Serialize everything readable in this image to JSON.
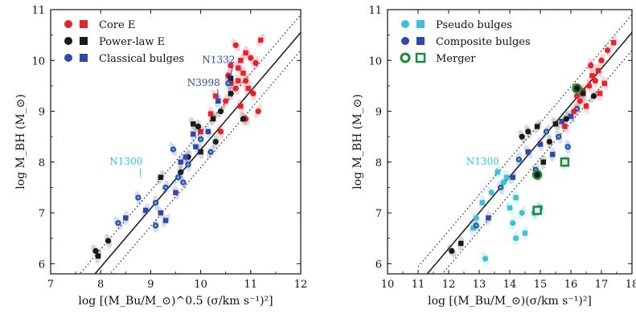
{
  "chart_data": [
    {
      "type": "scatter",
      "xlabel": "log [(M_Bu/M_⊙)^0.5 (σ/km s⁻¹)²]",
      "ylabel": "log M_BH (M_⊙)",
      "xlim": [
        7,
        12
      ],
      "ylim": [
        5.8,
        11
      ],
      "xticks": [
        7,
        8,
        9,
        10,
        11,
        12
      ],
      "yticks": [
        6,
        7,
        8,
        9,
        10,
        11
      ],
      "legend_position": "top-left",
      "legend": [
        {
          "label": "Core E",
          "color": "#e8222c",
          "marker": "circle+square"
        },
        {
          "label": "Power-law E",
          "color": "#1a1a1a",
          "marker": "circle+square"
        },
        {
          "label": "Classical bulges",
          "color": "#2f49a8",
          "marker": "circle+square"
        }
      ],
      "fit_line": {
        "x": [
          7.8,
          12.0
        ],
        "y": [
          5.7,
          10.55
        ]
      },
      "scatter_band": {
        "x": [
          7.6,
          12.0
        ],
        "offsets": [
          -0.35,
          0.35
        ]
      },
      "annotations": [
        {
          "text": "N1332",
          "color": "#2f49a8",
          "x": 10.35,
          "y": 9.95,
          "target_x": 10.58,
          "target_y": 9.62
        },
        {
          "text": "N3998",
          "color": "#2f49a8",
          "x": 10.05,
          "y": 9.5,
          "target_x": 10.35,
          "target_y": 9.2
        },
        {
          "text": "N1300",
          "color": "#3cc1d8",
          "x": 8.5,
          "y": 7.95,
          "target_x": 8.8,
          "target_y": 7.7
        }
      ],
      "series": [
        {
          "name": "Core E",
          "color": "#e8222c",
          "points": [
            [
              10.7,
              10.3
            ],
            [
              10.9,
              10.15
            ],
            [
              11.0,
              10.05
            ],
            [
              10.8,
              10.0
            ],
            [
              10.6,
              9.9
            ],
            [
              10.75,
              9.85
            ],
            [
              11.1,
              9.95
            ],
            [
              10.85,
              9.75
            ],
            [
              10.9,
              9.6
            ],
            [
              10.6,
              9.55
            ],
            [
              10.7,
              9.45
            ],
            [
              10.95,
              9.45
            ],
            [
              11.05,
              9.35
            ],
            [
              10.3,
              9.3
            ],
            [
              10.5,
              9.2
            ],
            [
              10.8,
              9.1
            ],
            [
              11.15,
              9.0
            ],
            [
              10.2,
              8.95
            ],
            [
              10.9,
              8.85
            ],
            [
              10.0,
              8.6
            ],
            [
              10.4,
              8.6
            ],
            [
              11.2,
              10.4
            ],
            [
              10.55,
              9.7
            ],
            [
              10.75,
              9.6
            ]
          ]
        },
        {
          "name": "Power-law E",
          "color": "#1a1a1a",
          "points": [
            [
              7.9,
              6.25
            ],
            [
              7.95,
              6.15
            ],
            [
              8.15,
              6.45
            ],
            [
              9.2,
              7.7
            ],
            [
              9.6,
              7.8
            ],
            [
              9.85,
              8.75
            ],
            [
              9.75,
              8.1
            ],
            [
              10.0,
              8.2
            ],
            [
              10.4,
              9.0
            ],
            [
              10.6,
              9.35
            ],
            [
              10.85,
              8.85
            ],
            [
              10.25,
              8.85
            ],
            [
              9.95,
              8.7
            ],
            [
              10.6,
              9.65
            ],
            [
              10.3,
              8.4
            ]
          ]
        },
        {
          "name": "Classical bulges",
          "color": "#2f49a8",
          "points": [
            [
              8.35,
              6.8
            ],
            [
              8.5,
              6.9
            ],
            [
              8.75,
              7.3
            ],
            [
              8.9,
              7.05
            ],
            [
              9.1,
              7.2
            ],
            [
              9.2,
              7.0
            ],
            [
              9.3,
              7.5
            ],
            [
              9.5,
              7.4
            ],
            [
              9.55,
              7.7
            ],
            [
              9.6,
              8.0
            ],
            [
              9.45,
              8.25
            ],
            [
              9.7,
              8.1
            ],
            [
              9.75,
              7.95
            ],
            [
              9.9,
              8.3
            ],
            [
              10.0,
              8.45
            ],
            [
              10.15,
              8.6
            ],
            [
              10.2,
              8.2
            ],
            [
              9.85,
              8.55
            ],
            [
              9.65,
              7.6
            ],
            [
              10.35,
              9.2
            ],
            [
              10.55,
              9.55
            ],
            [
              9.3,
              6.85
            ],
            [
              9.1,
              6.75
            ]
          ]
        }
      ]
    },
    {
      "type": "scatter",
      "xlabel": "log [(M_Bu/M_⊙)(σ/km s⁻¹)²]",
      "ylabel": "log M_BH (M_⊙)",
      "xlim": [
        10,
        18
      ],
      "ylim": [
        5.8,
        11
      ],
      "xticks": [
        10,
        11,
        12,
        13,
        14,
        15,
        16,
        17,
        18
      ],
      "yticks": [
        6,
        7,
        8,
        9,
        10,
        11
      ],
      "legend_position": "top-left",
      "legend": [
        {
          "label": "Pseudo bulges",
          "color": "#3cc1d8",
          "marker": "circle+square"
        },
        {
          "label": "Composite bulges",
          "color": "#2f49a8",
          "marker": "ringed circle+square"
        },
        {
          "label": "Merger",
          "color": "#1a8a3c",
          "marker": "open circle+square"
        }
      ],
      "fit_line": {
        "x": [
          11.3,
          18.0
        ],
        "y": [
          5.8,
          10.55
        ]
      },
      "scatter_band": {
        "x": [
          11.0,
          18.0
        ],
        "offsets": [
          -0.35,
          0.35
        ]
      },
      "annotations": [
        {
          "text": "N1300",
          "color": "#3cc1d8",
          "x": 13.1,
          "y": 7.95,
          "target_x": 13.6,
          "target_y": 7.8
        }
      ],
      "series": [
        {
          "name": "Pseudo bulges",
          "color": "#3cc1d8",
          "points": [
            [
              12.9,
              6.9
            ],
            [
              13.1,
              7.2
            ],
            [
              13.4,
              7.4
            ],
            [
              13.6,
              7.8
            ],
            [
              13.8,
              7.6
            ],
            [
              14.0,
              7.1
            ],
            [
              14.1,
              6.8
            ],
            [
              14.2,
              7.3
            ],
            [
              14.4,
              7.0
            ],
            [
              14.5,
              6.6
            ],
            [
              13.2,
              6.1
            ],
            [
              12.8,
              6.7
            ],
            [
              14.8,
              7.0
            ],
            [
              15.0,
              7.1
            ],
            [
              14.2,
              6.5
            ],
            [
              13.9,
              7.7
            ]
          ]
        },
        {
          "name": "Composite bulges",
          "color": "#2f49a8",
          "points": [
            [
              12.9,
              6.75
            ],
            [
              13.3,
              6.9
            ],
            [
              13.7,
              7.5
            ],
            [
              14.1,
              7.7
            ],
            [
              14.3,
              8.05
            ],
            [
              14.6,
              8.2
            ],
            [
              14.85,
              7.85
            ],
            [
              15.0,
              8.35
            ],
            [
              15.2,
              8.6
            ],
            [
              15.4,
              8.15
            ],
            [
              15.6,
              8.5
            ],
            [
              15.7,
              8.8
            ],
            [
              15.9,
              8.3
            ],
            [
              16.0,
              8.9
            ],
            [
              16.2,
              9.05
            ]
          ]
        },
        {
          "name": "Core E",
          "color": "#e8222c",
          "points": [
            [
              16.2,
              9.3
            ],
            [
              16.4,
              9.4
            ],
            [
              16.6,
              9.5
            ],
            [
              16.7,
              9.7
            ],
            [
              16.8,
              9.6
            ],
            [
              16.9,
              9.8
            ],
            [
              17.0,
              10.0
            ],
            [
              16.5,
              9.1
            ],
            [
              16.3,
              9.2
            ],
            [
              16.95,
              9.35
            ],
            [
              17.2,
              10.2
            ],
            [
              17.4,
              10.35
            ],
            [
              16.65,
              9.9
            ],
            [
              15.8,
              8.7
            ],
            [
              16.1,
              9.0
            ],
            [
              17.1,
              9.55
            ]
          ]
        },
        {
          "name": "Power-law E",
          "color": "#1a1a1a",
          "points": [
            [
              12.1,
              6.25
            ],
            [
              12.4,
              6.4
            ],
            [
              14.6,
              8.6
            ],
            [
              14.9,
              8.7
            ],
            [
              15.3,
              8.4
            ],
            [
              15.5,
              8.75
            ],
            [
              15.85,
              8.85
            ],
            [
              16.4,
              9.35
            ],
            [
              16.75,
              9.3
            ],
            [
              15.1,
              8.0
            ],
            [
              14.4,
              8.5
            ]
          ]
        },
        {
          "name": "Merger",
          "color": "#1a8a3c",
          "points": [
            [
              16.2,
              9.45
            ],
            [
              15.8,
              8.0
            ],
            [
              14.9,
              7.75
            ],
            [
              14.9,
              7.05
            ]
          ]
        }
      ]
    }
  ]
}
